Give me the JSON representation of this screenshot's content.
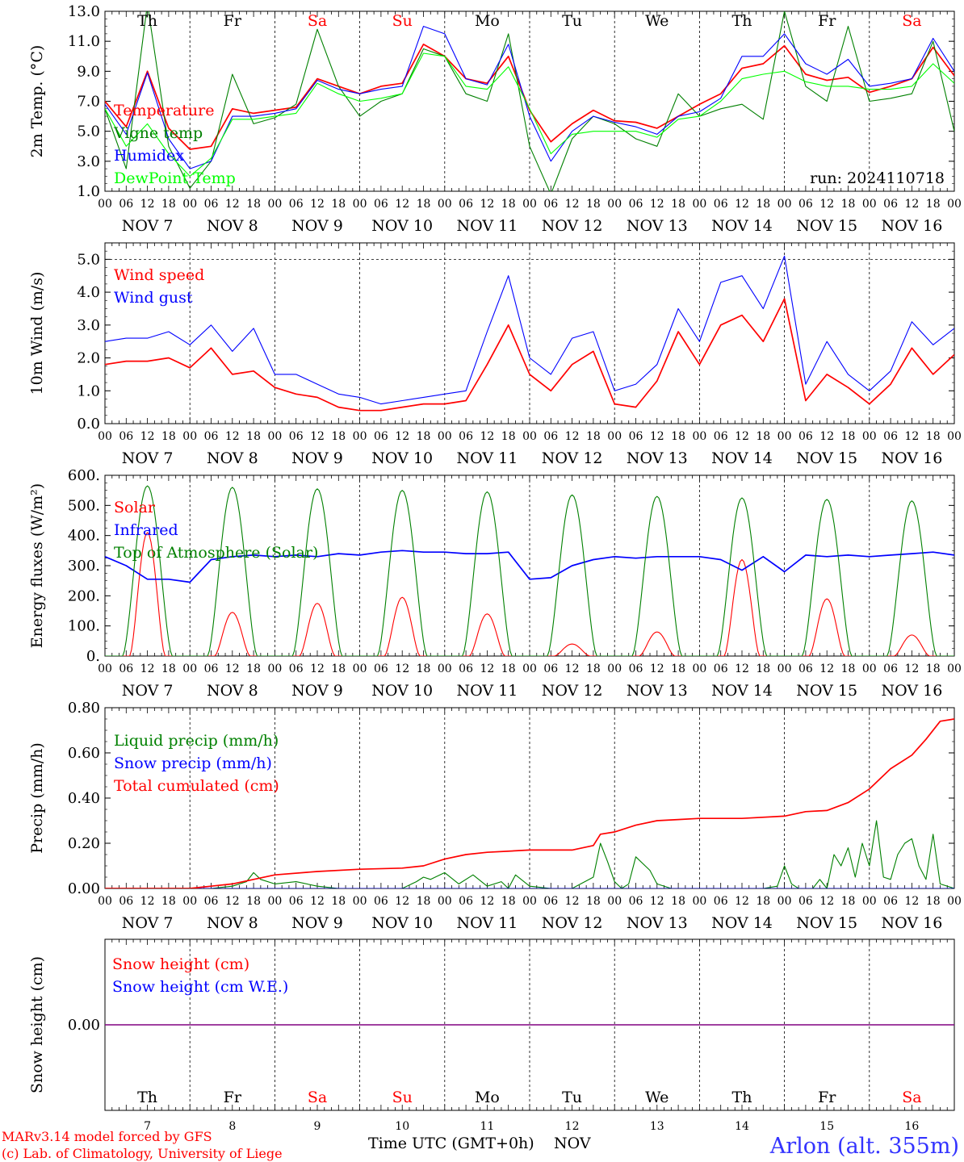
{
  "footer": {
    "model": "MARv3.14 model forced by GFS",
    "credit": "(c) Lab. of Climatology, University of Liege",
    "time_axis": "Time UTC (GMT+0h)",
    "month": "NOV",
    "location": "Arlon (alt. 355m)"
  },
  "days": {
    "labels": [
      "Th",
      "Fr",
      "Sa",
      "Su",
      "Mo",
      "Tu",
      "We",
      "Th",
      "Fr",
      "Sa"
    ],
    "weekend": [
      false,
      false,
      true,
      true,
      false,
      false,
      false,
      false,
      false,
      true
    ],
    "dates": [
      "NOV  7",
      "NOV  8",
      "NOV  9",
      "NOV 10",
      "NOV 11",
      "NOV 12",
      "NOV 13",
      "NOV 14",
      "NOV 15",
      "NOV 16"
    ],
    "date_numbers": [
      "7",
      "8",
      "9",
      "10",
      "11",
      "12",
      "13",
      "14",
      "15",
      "16"
    ],
    "hours": [
      "00",
      "06",
      "12",
      "18"
    ],
    "end_hour": "00"
  },
  "colors": {
    "red": "#ff0000",
    "darkgreen": "#008000",
    "blue": "#0000ff",
    "lightgreen": "#00ff00",
    "purple": "#800080",
    "weekend": "#ff0000"
  },
  "chart_data": [
    {
      "type": "line",
      "id": "temp",
      "ylabel": "2m Temp. (°C)",
      "ylim": [
        1,
        13
      ],
      "yticks": [
        1,
        3,
        5,
        7,
        9,
        11,
        13
      ],
      "ytick_labels": [
        "1.0",
        "3.0",
        "5.0",
        "7.0",
        "9.0",
        "11.0",
        "13.0"
      ],
      "x_unit": "hours since NOV 7 00 UTC",
      "xlim": [
        0,
        240
      ],
      "annotation": "run: 2024110718",
      "series": [
        {
          "name": "Temperature",
          "color": "#ff0000",
          "x": [
            0,
            6,
            12,
            18,
            24,
            30,
            36,
            42,
            48,
            54,
            60,
            66,
            72,
            78,
            84,
            90,
            96,
            102,
            108,
            114,
            120,
            126,
            132,
            138,
            144,
            150,
            156,
            162,
            168,
            174,
            180,
            186,
            192,
            198,
            204,
            210,
            216,
            222,
            228,
            234,
            240
          ],
          "y": [
            7,
            5.3,
            9,
            5.2,
            3.8,
            4,
            6.5,
            6.2,
            6.4,
            6.6,
            8.5,
            8,
            7.5,
            8,
            8.2,
            10.8,
            10,
            8.5,
            8.2,
            10,
            6.4,
            4.3,
            5.5,
            6.4,
            5.7,
            5.6,
            5.2,
            6,
            6.8,
            7.5,
            9.2,
            9.5,
            10.7,
            8.8,
            8.4,
            8.6,
            7.6,
            8,
            8.5,
            10.6,
            8.7
          ]
        },
        {
          "name": "Vigne temp",
          "color": "#008000",
          "x": [
            0,
            6,
            12,
            18,
            24,
            30,
            36,
            42,
            48,
            54,
            60,
            66,
            72,
            78,
            84,
            90,
            96,
            102,
            108,
            114,
            120,
            126,
            132,
            138,
            144,
            150,
            156,
            162,
            168,
            174,
            180,
            186,
            192,
            198,
            204,
            210,
            216,
            222,
            228,
            234,
            240
          ],
          "y": [
            6.5,
            2.5,
            13.5,
            4,
            1.2,
            3,
            8.8,
            5.5,
            5.9,
            6.8,
            11.8,
            8,
            6,
            7,
            7.5,
            10.5,
            10,
            7.5,
            7,
            11.5,
            4,
            0.8,
            4.5,
            6,
            5.5,
            4.5,
            4,
            7.5,
            6,
            6.5,
            6.8,
            5.8,
            13,
            8,
            7,
            12,
            7,
            7.2,
            7.5,
            11,
            5
          ]
        },
        {
          "name": "Humidex",
          "color": "#0000ff",
          "x": [
            0,
            6,
            12,
            18,
            24,
            30,
            36,
            42,
            48,
            54,
            60,
            66,
            72,
            78,
            84,
            90,
            96,
            102,
            108,
            114,
            120,
            126,
            132,
            138,
            144,
            150,
            156,
            162,
            168,
            174,
            180,
            186,
            192,
            198,
            204,
            210,
            216,
            222,
            228,
            234,
            240
          ],
          "y": [
            6.8,
            4.8,
            8.9,
            4.5,
            2.5,
            3,
            6,
            6,
            6.2,
            6.5,
            8.4,
            7.8,
            7.5,
            7.8,
            8,
            12,
            11.5,
            8.5,
            8.1,
            10.8,
            6,
            3,
            5,
            6,
            5.6,
            5.3,
            4.8,
            6,
            6.3,
            7.2,
            10,
            10,
            11.5,
            9.5,
            8.8,
            9.8,
            8,
            8.2,
            8.5,
            11.2,
            9
          ]
        },
        {
          "name": "DewPoint Temp",
          "color": "#00ff00",
          "x": [
            0,
            6,
            12,
            18,
            24,
            30,
            36,
            42,
            48,
            54,
            60,
            66,
            72,
            78,
            84,
            90,
            96,
            102,
            108,
            114,
            120,
            126,
            132,
            138,
            144,
            150,
            156,
            162,
            168,
            174,
            180,
            186,
            192,
            198,
            204,
            210,
            216,
            222,
            228,
            234,
            240
          ],
          "y": [
            6.5,
            4,
            5.5,
            3.5,
            2,
            3.2,
            5.8,
            5.8,
            6,
            6.2,
            8.2,
            7.5,
            7,
            7.2,
            7.5,
            10.2,
            10,
            8,
            7.8,
            9.3,
            6.5,
            3.5,
            4.8,
            5,
            5,
            5,
            4.6,
            5.8,
            6,
            7,
            8.5,
            8.8,
            9,
            8.3,
            8,
            8,
            7.8,
            7.8,
            8,
            9.5,
            8.2
          ]
        }
      ]
    },
    {
      "type": "line",
      "id": "wind",
      "ylabel": "10m Wind (m/s)",
      "ylim": [
        0,
        5.5
      ],
      "yticks": [
        0,
        1,
        2,
        3,
        4,
        5
      ],
      "ytick_labels": [
        "0.0",
        "1.0",
        "2.0",
        "3.0",
        "4.0",
        "5.0"
      ],
      "dashed_y": 5,
      "x_unit": "hours since NOV 7 00 UTC",
      "xlim": [
        0,
        240
      ],
      "series": [
        {
          "name": "Wind speed",
          "color": "#ff0000",
          "x": [
            0,
            6,
            12,
            18,
            24,
            30,
            36,
            42,
            48,
            54,
            60,
            66,
            72,
            78,
            84,
            90,
            96,
            102,
            108,
            114,
            120,
            126,
            132,
            138,
            144,
            150,
            156,
            162,
            168,
            174,
            180,
            186,
            192,
            198,
            204,
            210,
            216,
            222,
            228,
            234,
            240
          ],
          "y": [
            1.8,
            1.9,
            1.9,
            2,
            1.7,
            2.3,
            1.5,
            1.6,
            1.1,
            0.9,
            0.8,
            0.5,
            0.4,
            0.4,
            0.5,
            0.6,
            0.6,
            0.7,
            1.8,
            3,
            1.5,
            1,
            1.8,
            2.2,
            0.6,
            0.5,
            1.3,
            2.8,
            1.8,
            3,
            3.3,
            2.5,
            3.8,
            0.7,
            1.5,
            1.1,
            0.6,
            1.2,
            2.3,
            1.5,
            2.1
          ]
        },
        {
          "name": "Wind gust",
          "color": "#0000ff",
          "x": [
            0,
            6,
            12,
            18,
            24,
            30,
            36,
            42,
            48,
            54,
            60,
            66,
            72,
            78,
            84,
            90,
            96,
            102,
            108,
            114,
            120,
            126,
            132,
            138,
            144,
            150,
            156,
            162,
            168,
            174,
            180,
            186,
            192,
            198,
            204,
            210,
            216,
            222,
            228,
            234,
            240
          ],
          "y": [
            2.5,
            2.6,
            2.6,
            2.8,
            2.4,
            3,
            2.2,
            2.9,
            1.5,
            1.5,
            1.2,
            0.9,
            0.8,
            0.6,
            0.7,
            0.8,
            0.9,
            1,
            2.8,
            4.5,
            2,
            1.5,
            2.6,
            2.8,
            1,
            1.2,
            1.8,
            3.5,
            2.5,
            4.3,
            4.5,
            3.5,
            5.1,
            1.2,
            2.5,
            1.5,
            1,
            1.6,
            3.1,
            2.4,
            2.9
          ]
        }
      ]
    },
    {
      "type": "line",
      "id": "energy",
      "ylabel": "Energy fluxes (W/m²)",
      "ylim": [
        0,
        600
      ],
      "yticks": [
        0,
        100,
        200,
        300,
        400,
        500,
        600
      ],
      "ytick_labels": [
        "0.",
        "100.",
        "200.",
        "300.",
        "400.",
        "500.",
        "600."
      ],
      "x_unit": "hours since NOV 7 00 UTC",
      "xlim": [
        0,
        240
      ],
      "series": [
        {
          "name": "Solar",
          "color": "#ff0000",
          "daily_peak_hour": 12,
          "daily_peak": [
            410,
            145,
            175,
            195,
            140,
            40,
            80,
            320,
            190,
            70
          ]
        },
        {
          "name": "Infrared",
          "color": "#0000ff",
          "x": [
            0,
            6,
            12,
            18,
            24,
            30,
            36,
            42,
            48,
            54,
            60,
            66,
            72,
            78,
            84,
            90,
            96,
            102,
            108,
            114,
            120,
            126,
            132,
            138,
            144,
            150,
            156,
            162,
            168,
            174,
            180,
            186,
            192,
            198,
            204,
            210,
            216,
            222,
            228,
            234,
            240
          ],
          "y": [
            330,
            300,
            255,
            255,
            245,
            320,
            330,
            335,
            330,
            335,
            330,
            340,
            335,
            345,
            350,
            345,
            345,
            340,
            340,
            345,
            255,
            260,
            300,
            320,
            330,
            325,
            330,
            330,
            330,
            320,
            285,
            330,
            280,
            335,
            330,
            335,
            330,
            335,
            340,
            345,
            335
          ]
        },
        {
          "name": "Top of Atmosphere (Solar)",
          "color": "#008000",
          "daily_peak_hour": 12,
          "daily_peak": [
            565,
            560,
            555,
            550,
            545,
            535,
            530,
            525,
            520,
            515
          ]
        }
      ]
    },
    {
      "type": "line",
      "id": "precip",
      "ylabel": "Precip (mm/h)",
      "ylim": [
        0,
        0.8
      ],
      "yticks": [
        0,
        0.2,
        0.4,
        0.6,
        0.8
      ],
      "ytick_labels": [
        "0.00",
        "0.20",
        "0.40",
        "0.60",
        "0.80"
      ],
      "x_unit": "hours since NOV 7 00 UTC",
      "xlim": [
        0,
        240
      ],
      "series": [
        {
          "name": "Liquid precip (mm/h)",
          "color": "#008000",
          "x": [
            0,
            6,
            12,
            18,
            24,
            30,
            36,
            40,
            42,
            44,
            48,
            54,
            60,
            66,
            72,
            78,
            84,
            88,
            90,
            92,
            96,
            100,
            104,
            108,
            112,
            114,
            116,
            120,
            126,
            132,
            138,
            140,
            142,
            144,
            146,
            148,
            150,
            154,
            156,
            160,
            168,
            174,
            180,
            186,
            190,
            192,
            194,
            196,
            200,
            202,
            204,
            206,
            208,
            210,
            212,
            214,
            216,
            218,
            220,
            222,
            224,
            226,
            228,
            230,
            232,
            234,
            236,
            240
          ],
          "y": [
            0,
            0,
            0,
            0,
            0,
            0,
            0.01,
            0.03,
            0.07,
            0.04,
            0.02,
            0.03,
            0.01,
            0,
            0,
            0,
            0,
            0.03,
            0.05,
            0.04,
            0.07,
            0.02,
            0.06,
            0.01,
            0.03,
            0,
            0.06,
            0.01,
            0,
            0,
            0.05,
            0.2,
            0.12,
            0.03,
            0,
            0.02,
            0.14,
            0.08,
            0.02,
            0,
            0,
            0,
            0,
            0,
            0.01,
            0.1,
            0.02,
            0,
            0,
            0.04,
            0,
            0.15,
            0.1,
            0.18,
            0.05,
            0.2,
            0.1,
            0.3,
            0.05,
            0.04,
            0.15,
            0.2,
            0.22,
            0.1,
            0.04,
            0.24,
            0.02,
            0
          ]
        },
        {
          "name": "Snow precip (mm/h)",
          "color": "#0000ff",
          "x": [
            0,
            240
          ],
          "y": [
            0,
            0
          ]
        },
        {
          "name": "Total cumulated (cm)",
          "color": "#ff0000",
          "x": [
            0,
            24,
            30,
            36,
            42,
            48,
            60,
            72,
            84,
            90,
            96,
            102,
            108,
            120,
            132,
            138,
            140,
            144,
            150,
            156,
            162,
            168,
            180,
            192,
            198,
            204,
            210,
            216,
            222,
            228,
            232,
            236,
            240
          ],
          "y": [
            0,
            0,
            0.01,
            0.02,
            0.04,
            0.06,
            0.075,
            0.085,
            0.09,
            0.1,
            0.13,
            0.15,
            0.16,
            0.17,
            0.17,
            0.19,
            0.24,
            0.25,
            0.28,
            0.3,
            0.305,
            0.31,
            0.31,
            0.32,
            0.34,
            0.345,
            0.38,
            0.44,
            0.53,
            0.59,
            0.66,
            0.74,
            0.75
          ]
        }
      ]
    },
    {
      "type": "line",
      "id": "snow",
      "ylabel": "Snow height (cm)",
      "ylim": [
        -1,
        1
      ],
      "yticks": [
        0
      ],
      "ytick_labels": [
        "0.00"
      ],
      "x_unit": "hours since NOV 7 00 UTC",
      "xlim": [
        0,
        240
      ],
      "series": [
        {
          "name": "Snow height (cm)",
          "color": "#ff0000",
          "x": [
            0,
            240
          ],
          "y": [
            0,
            0
          ]
        },
        {
          "name": "Snow height (cm W.E.)",
          "color": "#0000ff",
          "x": [
            0,
            240
          ],
          "y": [
            0,
            0
          ]
        }
      ]
    }
  ]
}
